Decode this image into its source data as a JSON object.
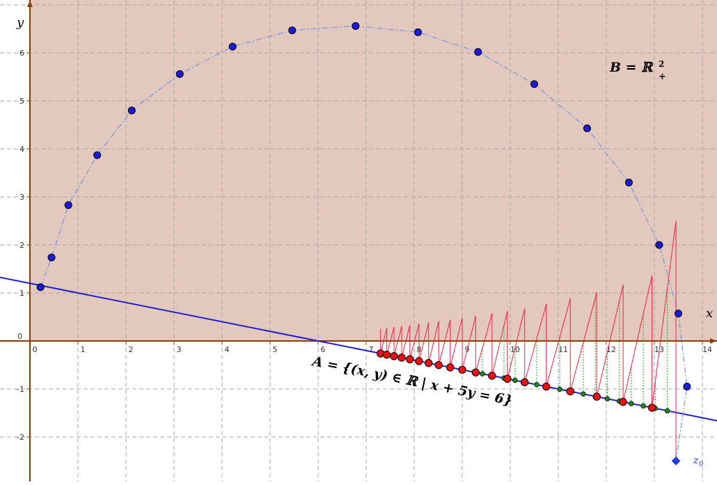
{
  "colors": {
    "region_fill": "#e3c8bd",
    "grid": "#a5a5a5",
    "axis": "#8b3a00",
    "line_a": "#1f1fc8",
    "curve": "#6f94e8",
    "blue_point": "#1a1ae0",
    "red_point": "#ee1111",
    "green_point": "#1a8c1a",
    "red_segment": "#ff1a40",
    "green_dots": "#1a9a1a",
    "z0": "#1a3ee0"
  },
  "axes": {
    "x_label": "x",
    "y_label": "y",
    "origin_label": "0",
    "x_ticks": [
      0,
      1,
      2,
      3,
      4,
      5,
      6,
      7,
      8,
      9,
      10,
      11,
      12,
      13,
      14
    ],
    "y_ticks": [
      -2,
      -1,
      1,
      2,
      3,
      4,
      5,
      6
    ]
  },
  "labels": {
    "set_a": "A = {(x, y) ∈ ℝ | x + 5y = 6}",
    "set_b_lhs": "B = ℝ",
    "set_b_sup": "2",
    "set_b_sub": "+",
    "z0_name": "z",
    "z0_sub": "0"
  },
  "line_a": {
    "equation": "x + 5y = 6"
  },
  "curve_points": [
    [
      0.22,
      1.12
    ],
    [
      0.45,
      1.74
    ],
    [
      0.8,
      2.83
    ],
    [
      1.4,
      3.87
    ],
    [
      2.12,
      4.8
    ],
    [
      3.12,
      5.56
    ],
    [
      4.22,
      6.13
    ],
    [
      5.46,
      6.47
    ],
    [
      6.78,
      6.56
    ],
    [
      8.08,
      6.43
    ],
    [
      9.33,
      6.02
    ],
    [
      10.5,
      5.35
    ],
    [
      11.6,
      4.43
    ],
    [
      12.47,
      3.3
    ],
    [
      13.1,
      2.0
    ],
    [
      13.5,
      0.57
    ],
    [
      13.68,
      -0.95
    ]
  ],
  "z0": [
    13.45,
    -2.5
  ],
  "red_points": [
    7.3,
    7.43,
    7.58,
    7.74,
    7.91,
    8.1,
    8.3,
    8.51,
    8.75,
    9.0,
    9.28,
    9.62,
    9.94,
    10.3,
    10.75,
    11.25,
    11.8,
    12.35,
    12.95
  ],
  "green_points": [
    9.42,
    9.65,
    9.87,
    10.1,
    10.33,
    10.55,
    10.78,
    11.03,
    11.28,
    11.52,
    11.77,
    12.02,
    12.27,
    12.52,
    12.77,
    13.02,
    13.27
  ],
  "red_segment_tops": [
    [
      7.3,
      0.25
    ],
    [
      7.43,
      0.27
    ],
    [
      7.58,
      0.29
    ],
    [
      7.74,
      0.31
    ],
    [
      7.91,
      0.33
    ],
    [
      8.1,
      0.36
    ],
    [
      8.3,
      0.38
    ],
    [
      8.51,
      0.41
    ],
    [
      8.75,
      0.44
    ],
    [
      9.0,
      0.48
    ],
    [
      9.28,
      0.52
    ],
    [
      9.62,
      0.57
    ],
    [
      9.94,
      0.62
    ],
    [
      10.3,
      0.67
    ],
    [
      10.75,
      0.77
    ],
    [
      11.25,
      0.88
    ],
    [
      11.8,
      1.01
    ],
    [
      12.35,
      1.17
    ],
    [
      12.95,
      1.36
    ],
    [
      13.45,
      2.5
    ]
  ]
}
